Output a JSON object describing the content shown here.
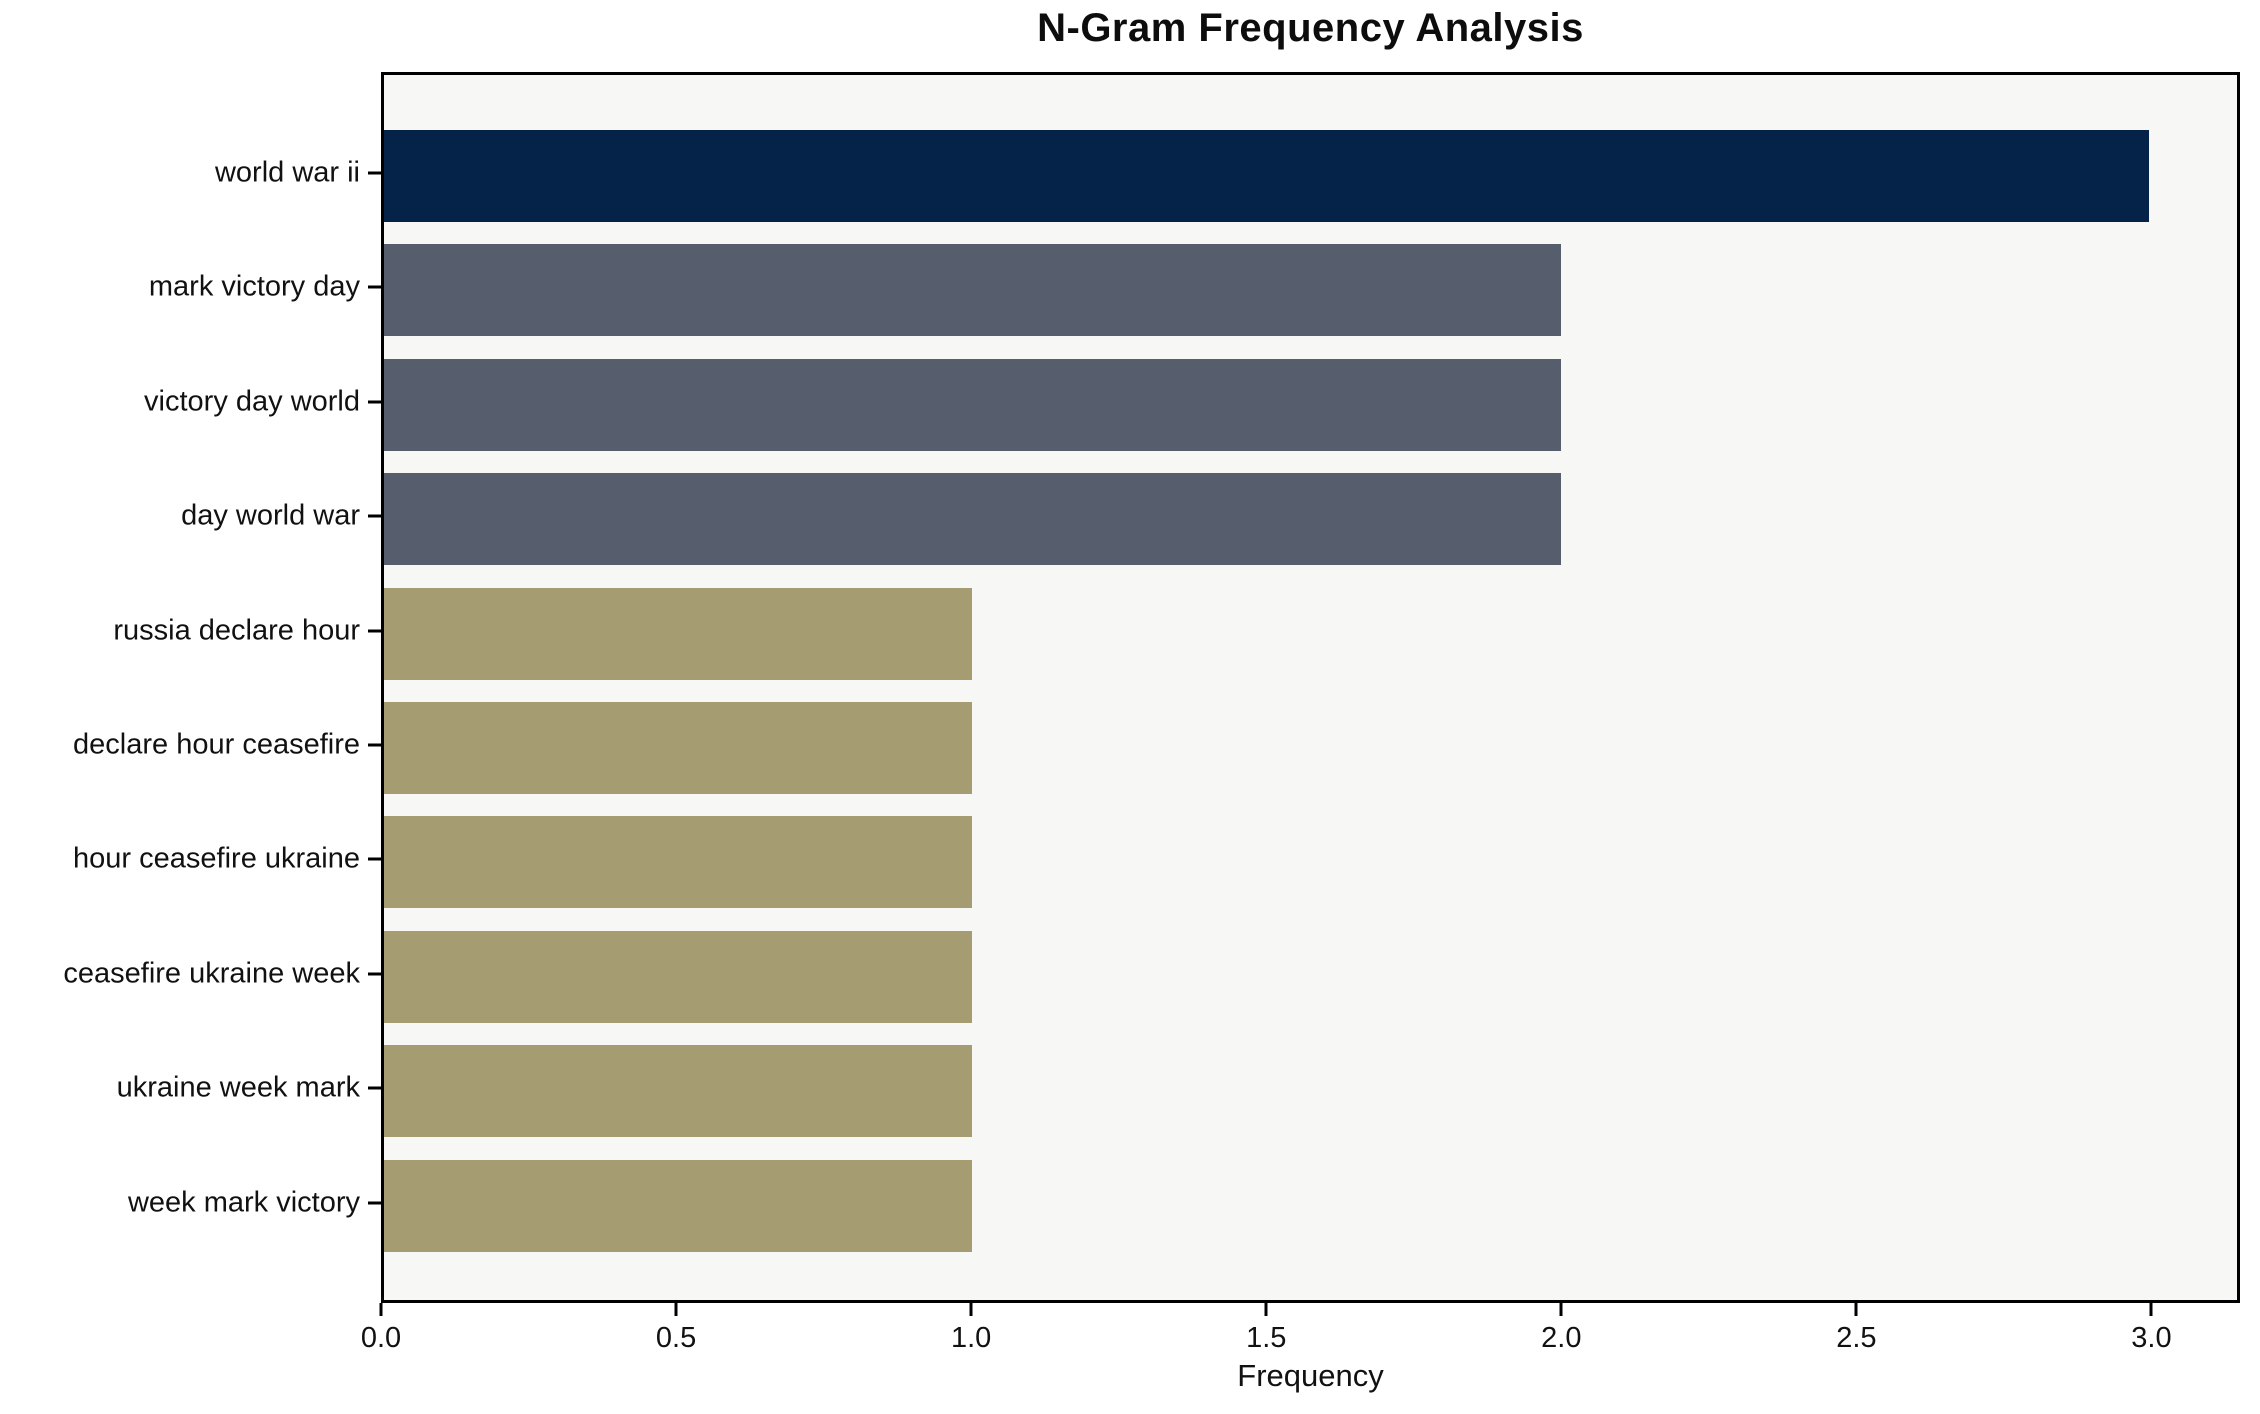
{
  "title": "N-Gram Frequency Analysis",
  "xlabel": "Frequency",
  "chart_data": {
    "type": "bar",
    "orientation": "horizontal",
    "title": "N-Gram Frequency Analysis",
    "xlabel": "Frequency",
    "ylabel": "",
    "categories": [
      "world war ii",
      "mark victory day",
      "victory day world",
      "day world war",
      "russia declare hour",
      "declare hour ceasefire",
      "hour ceasefire ukraine",
      "ceasefire ukraine week",
      "ukraine week mark",
      "week mark victory"
    ],
    "values": [
      3,
      2,
      2,
      2,
      1,
      1,
      1,
      1,
      1,
      1
    ],
    "bar_colors": [
      "#052348",
      "#565D6C",
      "#565D6C",
      "#565D6C",
      "#A69C71",
      "#A69C71",
      "#A69C71",
      "#A69C71",
      "#A69C71",
      "#A69C71"
    ],
    "xlim": [
      0,
      3.15
    ],
    "xticks": [
      0.0,
      0.5,
      1.0,
      1.5,
      2.0,
      2.5,
      3.0
    ],
    "xtick_labels": [
      "0.0",
      "0.5",
      "1.0",
      "1.5",
      "2.0",
      "2.5",
      "3.0"
    ],
    "grid": false,
    "legend": null,
    "plot_bg": "#F7F7F6",
    "figure_bg": "#FFFFFF",
    "axis_color": "#000000"
  }
}
